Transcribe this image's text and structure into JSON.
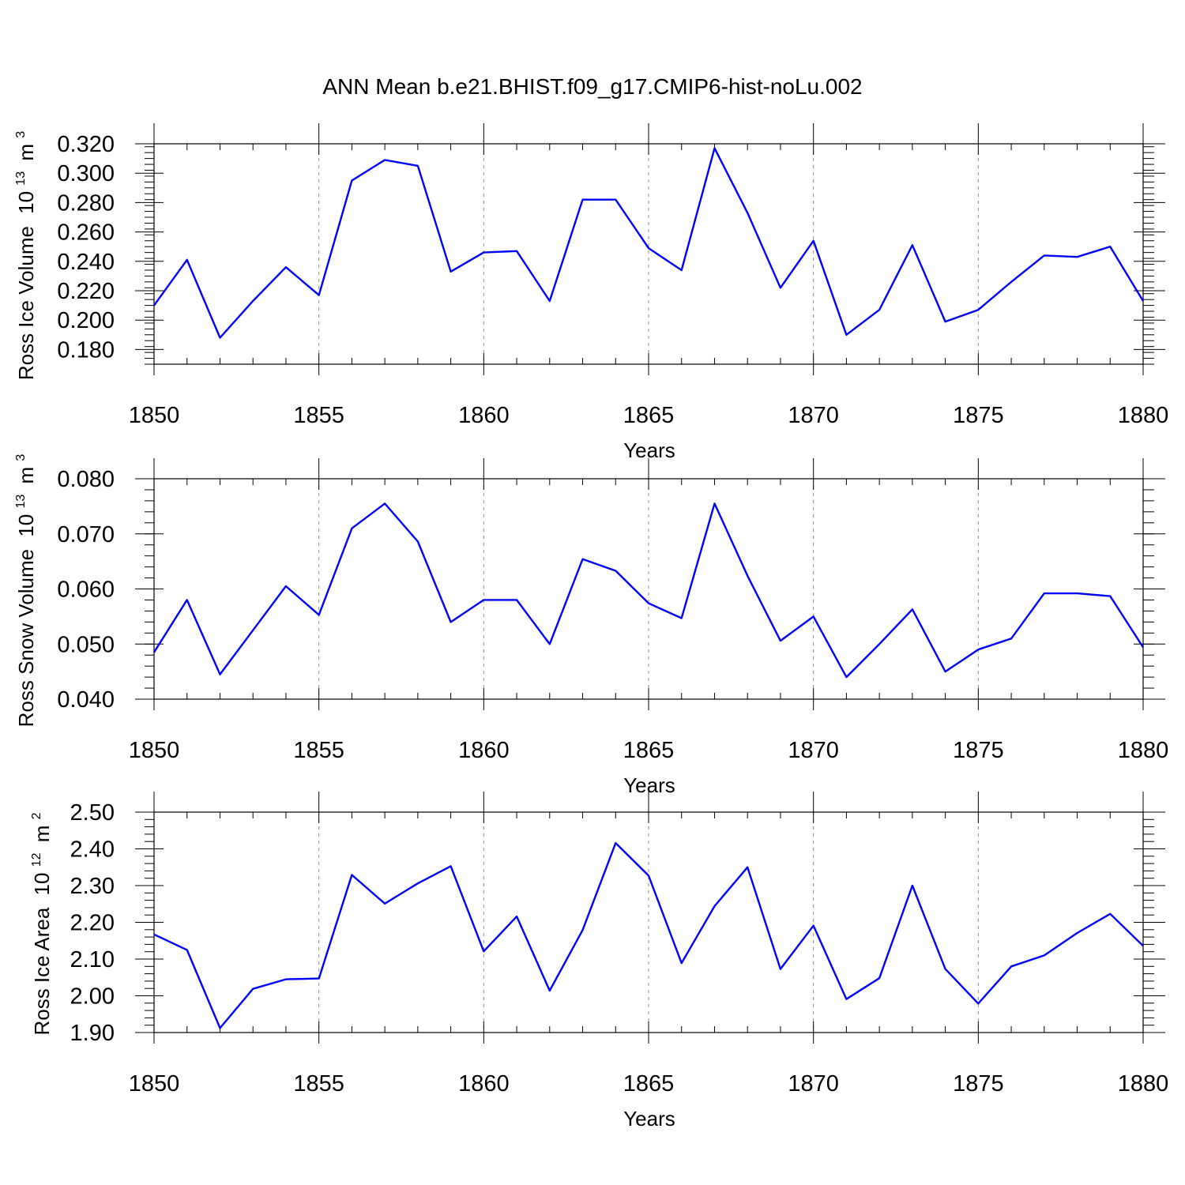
{
  "page_title": "ANN Mean b.e21.BHIST.f09_g17.CMIP6-hist-noLu.002",
  "colors": {
    "series": "#0000ff",
    "grid": "#8c8c8c",
    "axis": "#000000"
  },
  "chart_data": [
    {
      "type": "line",
      "ylabel": "Ross Ice Volume",
      "yunit": {
        "base": "10",
        "exp": "13",
        "unit": "m",
        "unit_exp": "3"
      },
      "xlabel": "Years",
      "xlim": [
        1850,
        1880
      ],
      "ylim": [
        0.17,
        0.32
      ],
      "yticks": [
        0.32,
        0.3,
        0.28,
        0.26,
        0.24,
        0.22,
        0.2,
        0.18
      ],
      "yticklabels": [
        "0.320",
        "0.300",
        "0.280",
        "0.260",
        "0.240",
        "0.220",
        "0.200",
        "0.180"
      ],
      "xticks": [
        1850,
        1855,
        1860,
        1865,
        1870,
        1875,
        1880
      ],
      "xticklabels": [
        "1850",
        "1855",
        "1860",
        "1865",
        "1870",
        "1875",
        "1880"
      ],
      "vgrid": [
        1855,
        1860,
        1865,
        1870,
        1875
      ],
      "x": [
        1850,
        1851,
        1852,
        1853,
        1854,
        1855,
        1856,
        1857,
        1858,
        1859,
        1860,
        1861,
        1862,
        1863,
        1864,
        1865,
        1866,
        1867,
        1868,
        1869,
        1870,
        1871,
        1872,
        1873,
        1874,
        1875,
        1876,
        1877,
        1878,
        1879,
        1880
      ],
      "values": [
        0.21,
        0.241,
        0.188,
        0.213,
        0.236,
        0.217,
        0.295,
        0.309,
        0.305,
        0.233,
        0.246,
        0.247,
        0.213,
        0.282,
        0.282,
        0.249,
        0.234,
        0.317,
        0.273,
        0.222,
        0.254,
        0.19,
        0.207,
        0.251,
        0.199,
        0.207,
        0.226,
        0.244,
        0.243,
        0.25,
        0.213
      ]
    },
    {
      "type": "line",
      "ylabel": "Ross Snow Volume",
      "yunit": {
        "base": "10",
        "exp": "13",
        "unit": "m",
        "unit_exp": "3"
      },
      "xlabel": "Years",
      "xlim": [
        1850,
        1880
      ],
      "ylim": [
        0.04,
        0.08
      ],
      "yticks": [
        0.08,
        0.07,
        0.06,
        0.05,
        0.04
      ],
      "yticklabels": [
        "0.080",
        "0.070",
        "0.060",
        "0.050",
        "0.040"
      ],
      "xticks": [
        1850,
        1855,
        1860,
        1865,
        1870,
        1875,
        1880
      ],
      "xticklabels": [
        "1850",
        "1855",
        "1860",
        "1865",
        "1870",
        "1875",
        "1880"
      ],
      "vgrid": [
        1855,
        1860,
        1865,
        1870,
        1875
      ],
      "x": [
        1850,
        1851,
        1852,
        1853,
        1854,
        1855,
        1856,
        1857,
        1858,
        1859,
        1860,
        1861,
        1862,
        1863,
        1864,
        1865,
        1866,
        1867,
        1868,
        1869,
        1870,
        1871,
        1872,
        1873,
        1874,
        1875,
        1876,
        1877,
        1878,
        1879,
        1880
      ],
      "values": [
        0.0485,
        0.058,
        0.0445,
        0.0525,
        0.0605,
        0.0553,
        0.071,
        0.0755,
        0.0686,
        0.054,
        0.058,
        0.058,
        0.05,
        0.0654,
        0.0633,
        0.0574,
        0.0547,
        0.0755,
        0.0624,
        0.0506,
        0.055,
        0.044,
        0.05,
        0.0563,
        0.045,
        0.049,
        0.051,
        0.0592,
        0.0592,
        0.0587,
        0.0494
      ]
    },
    {
      "type": "line",
      "ylabel": "Ross Ice Area",
      "yunit": {
        "base": "10",
        "exp": "12",
        "unit": "m",
        "unit_exp": "2"
      },
      "xlabel": "Years",
      "xlim": [
        1850,
        1880
      ],
      "ylim": [
        1.9,
        2.5
      ],
      "yticks": [
        2.5,
        2.4,
        2.3,
        2.2,
        2.1,
        2.0,
        1.9
      ],
      "yticklabels": [
        "2.50",
        "2.40",
        "2.30",
        "2.20",
        "2.10",
        "2.00",
        "1.90"
      ],
      "xticks": [
        1850,
        1855,
        1860,
        1865,
        1870,
        1875,
        1880
      ],
      "xticklabels": [
        "1850",
        "1855",
        "1860",
        "1865",
        "1870",
        "1875",
        "1880"
      ],
      "vgrid": [
        1855,
        1860,
        1865,
        1870,
        1875
      ],
      "x": [
        1850,
        1851,
        1852,
        1853,
        1854,
        1855,
        1856,
        1857,
        1858,
        1859,
        1860,
        1861,
        1862,
        1863,
        1864,
        1865,
        1866,
        1867,
        1868,
        1869,
        1870,
        1871,
        1872,
        1873,
        1874,
        1875,
        1876,
        1877,
        1878,
        1879,
        1880
      ],
      "values": [
        2.167,
        2.125,
        1.912,
        2.019,
        2.045,
        2.047,
        2.329,
        2.251,
        2.306,
        2.353,
        2.121,
        2.216,
        2.014,
        2.179,
        2.416,
        2.327,
        2.089,
        2.244,
        2.35,
        2.073,
        2.191,
        1.991,
        2.048,
        2.3,
        2.073,
        1.979,
        2.08,
        2.11,
        2.171,
        2.223,
        2.136
      ]
    }
  ]
}
